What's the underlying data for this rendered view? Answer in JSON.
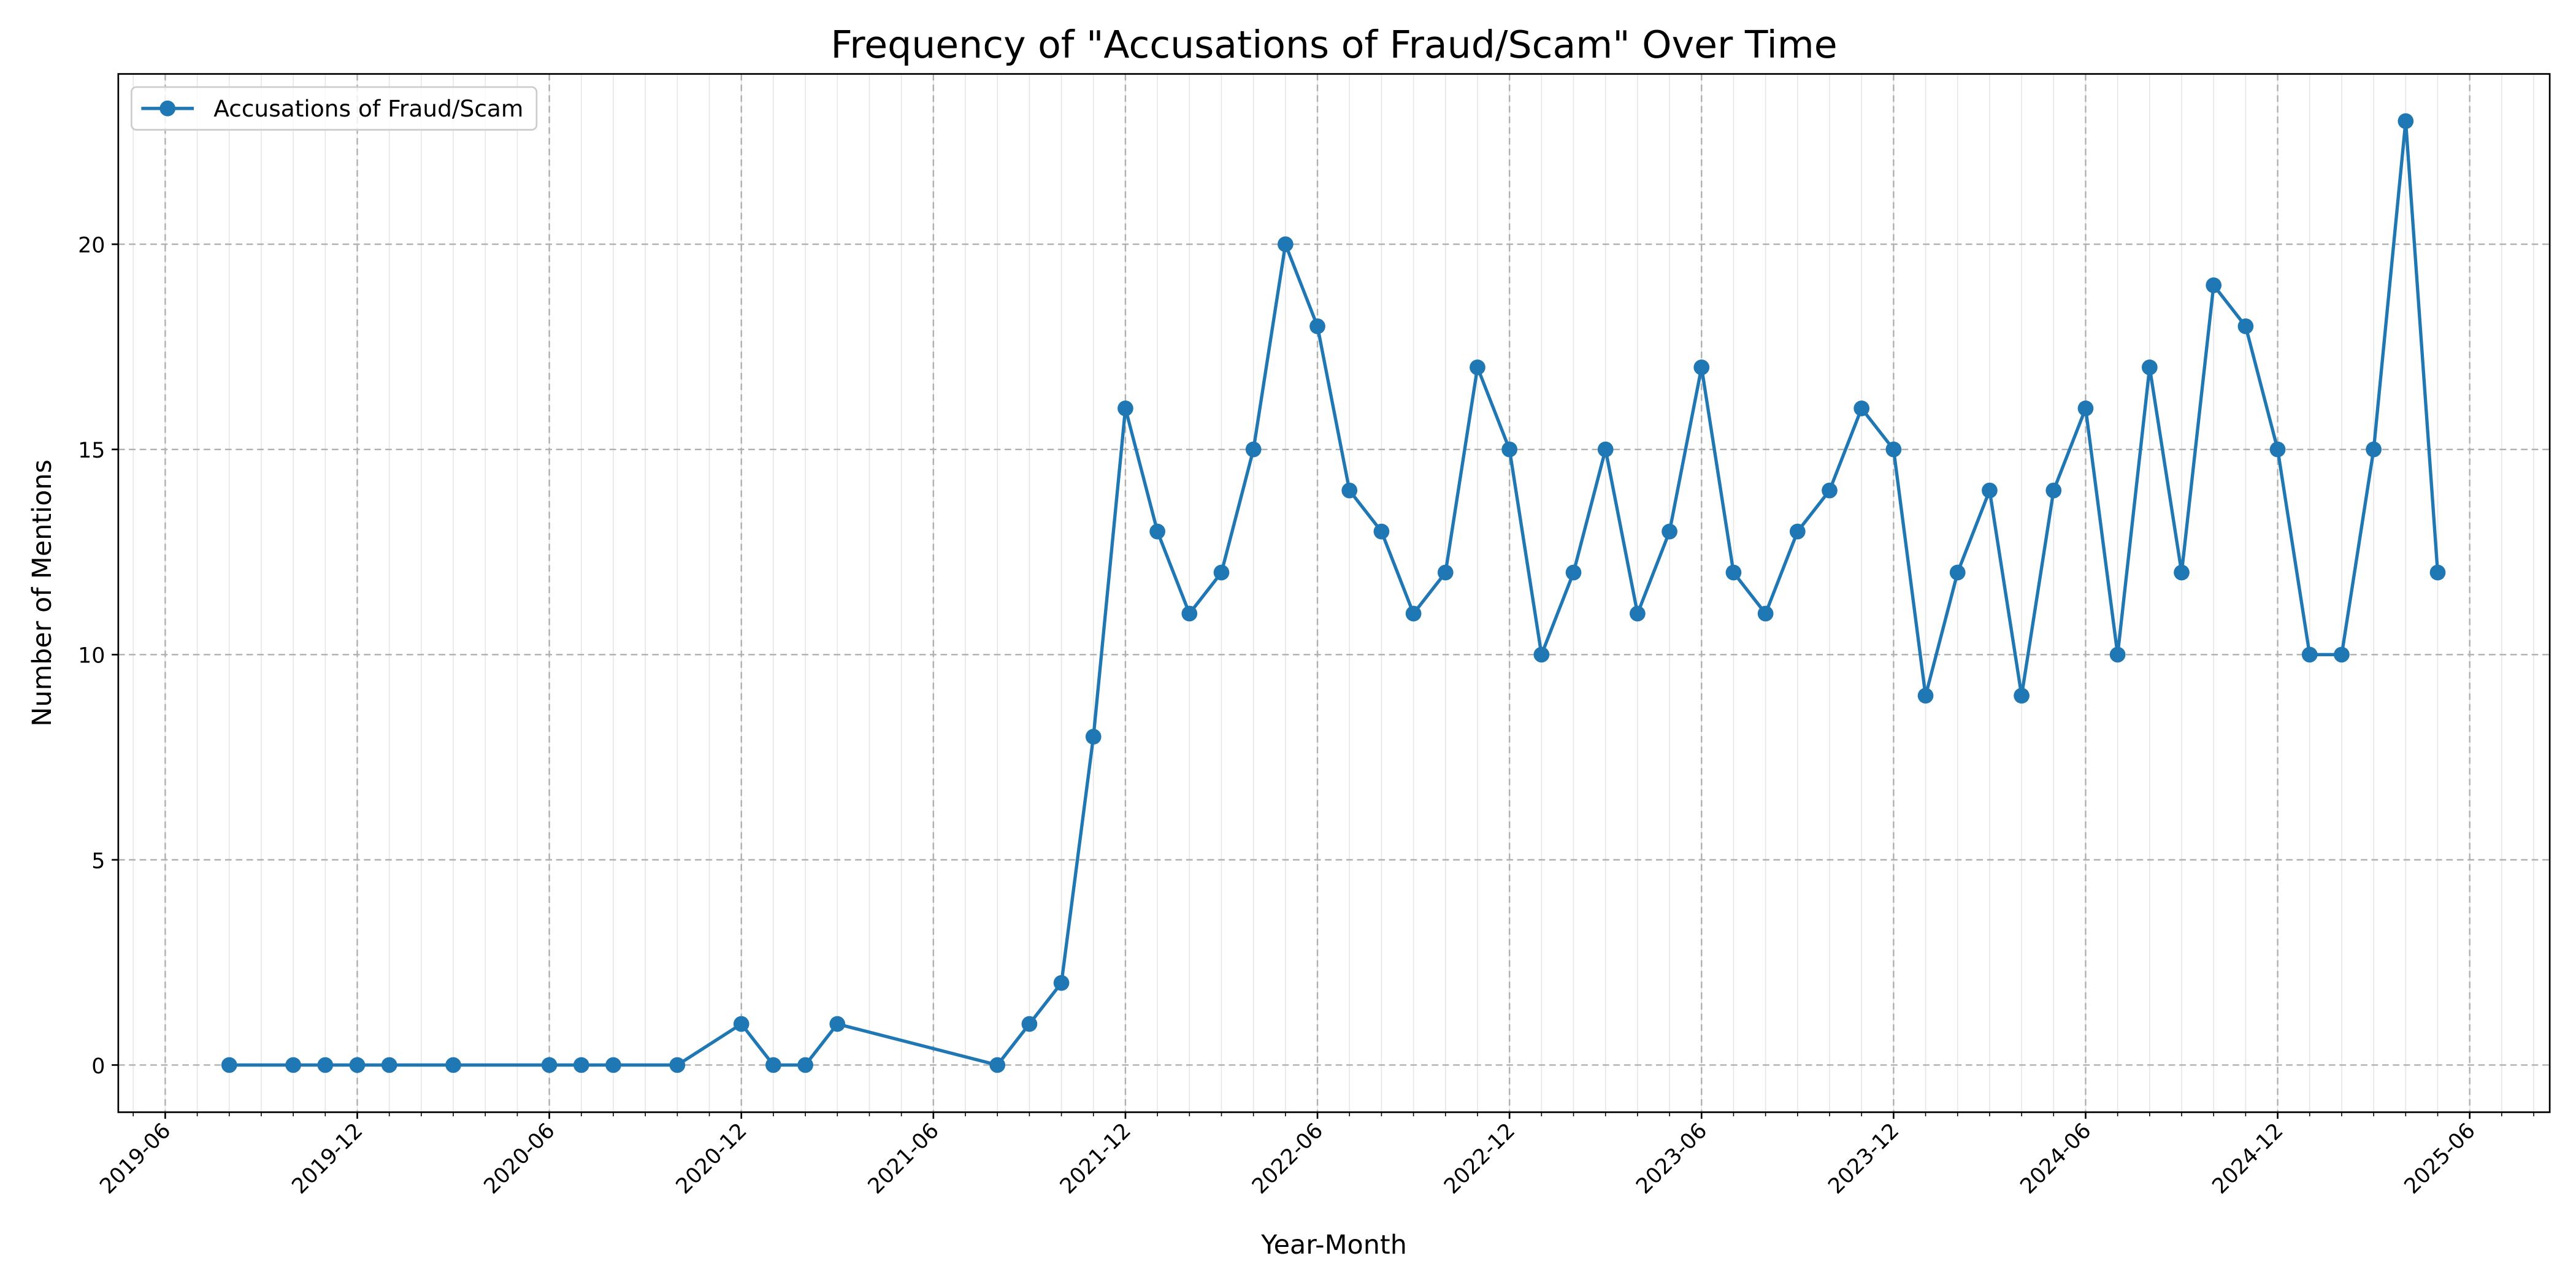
{
  "chart_data": {
    "type": "line",
    "title": "Frequency of \"Accusations of Fraud/Scam\" Over Time",
    "x_label": "Year-Month",
    "y_label": "Number of Mentions",
    "x": [
      "2019-08",
      "2019-10",
      "2019-11",
      "2019-12",
      "2020-01",
      "2020-03",
      "2020-06",
      "2020-07",
      "2020-08",
      "2020-10",
      "2020-12",
      "2021-01",
      "2021-02",
      "2021-03",
      "2021-08",
      "2021-09",
      "2021-10",
      "2021-11",
      "2021-12",
      "2022-01",
      "2022-02",
      "2022-03",
      "2022-04",
      "2022-05",
      "2022-06",
      "2022-07",
      "2022-08",
      "2022-09",
      "2022-10",
      "2022-11",
      "2022-12",
      "2023-01",
      "2023-02",
      "2023-03",
      "2023-04",
      "2023-05",
      "2023-06",
      "2023-07",
      "2023-08",
      "2023-09",
      "2023-10",
      "2023-11",
      "2023-12",
      "2024-01",
      "2024-02",
      "2024-03",
      "2024-04",
      "2024-05",
      "2024-06",
      "2024-07",
      "2024-08",
      "2024-09",
      "2024-10",
      "2024-11",
      "2024-12",
      "2025-01",
      "2025-02",
      "2025-03",
      "2025-04",
      "2025-05"
    ],
    "series": [
      {
        "name": "Accusations of Fraud/Scam",
        "color": "#1f77b4",
        "values": [
          0,
          0,
          0,
          0,
          0,
          0,
          0,
          0,
          0,
          0,
          1,
          0,
          0,
          1,
          0,
          1,
          2,
          8,
          16,
          13,
          11,
          12,
          15,
          20,
          18,
          14,
          13,
          11,
          12,
          17,
          15,
          10,
          12,
          15,
          11,
          13,
          17,
          12,
          11,
          13,
          14,
          16,
          15,
          9,
          12,
          14,
          9,
          14,
          16,
          10,
          17,
          12,
          19,
          18,
          15,
          10,
          10,
          15,
          23,
          12
        ]
      }
    ],
    "xlim": [
      "2019-04-17",
      "2025-08-16"
    ],
    "xticks": [
      "2019-06",
      "2019-12",
      "2020-06",
      "2020-12",
      "2021-06",
      "2021-12",
      "2022-06",
      "2022-12",
      "2023-06",
      "2023-12",
      "2024-06",
      "2024-12",
      "2025-06"
    ],
    "ylim": [
      -1.15,
      24.15
    ],
    "yticks": [
      0,
      5,
      10,
      15,
      20
    ],
    "grid": true,
    "minor_grid": true,
    "legend": "upper left"
  }
}
